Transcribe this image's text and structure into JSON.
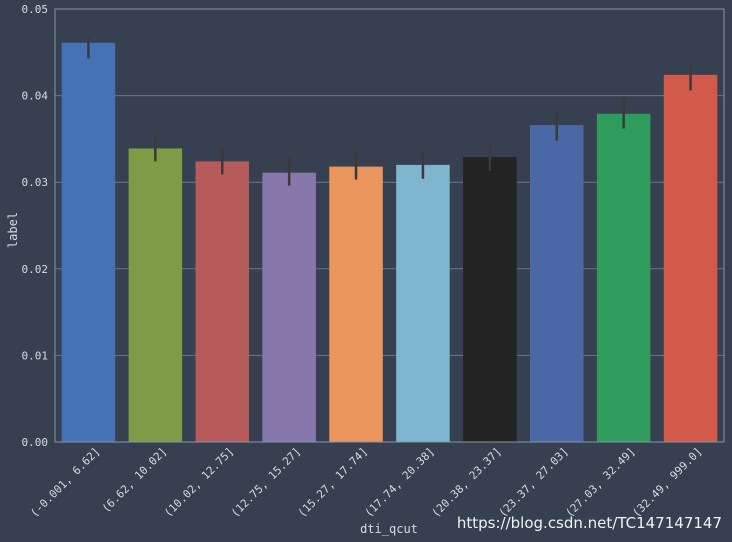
{
  "chart_data": {
    "type": "bar",
    "title": "",
    "xlabel": "dti_qcut",
    "ylabel": "label",
    "categories": [
      "(-0.001, 6.62]",
      "(6.62, 10.02]",
      "(10.02, 12.75]",
      "(12.75, 15.27]",
      "(15.27, 17.74]",
      "(17.74, 20.38]",
      "(20.38, 23.37]",
      "(23.37, 27.03]",
      "(27.03, 32.49]",
      "(32.49, 999.0]"
    ],
    "values": [
      0.0461,
      0.0339,
      0.0324,
      0.0311,
      0.0318,
      0.032,
      0.0329,
      0.0366,
      0.0379,
      0.0424
    ],
    "error_bars": [
      [
        0.0443,
        0.0468
      ],
      [
        0.0324,
        0.0355
      ],
      [
        0.0309,
        0.0341
      ],
      [
        0.0296,
        0.0329
      ],
      [
        0.0303,
        0.0335
      ],
      [
        0.0304,
        0.0335
      ],
      [
        0.0313,
        0.0345
      ],
      [
        0.0348,
        0.0381
      ],
      [
        0.0362,
        0.0398
      ],
      [
        0.0406,
        0.0436
      ]
    ],
    "colors": [
      "#4572b6",
      "#7f9b47",
      "#b65a5a",
      "#8678ab",
      "#ea955b",
      "#7fb6cf",
      "#232323",
      "#4a67a6",
      "#2f9b5c",
      "#d15a4b"
    ],
    "ylim": [
      0,
      0.05
    ],
    "yticks": [
      "0.00",
      "0.01",
      "0.02",
      "0.03",
      "0.04",
      "0.05"
    ],
    "grid": true
  },
  "watermark": "https://blog.csdn.net/TC147147147",
  "theme": {
    "background": "#374050",
    "grid": "#6c7590",
    "frame": "#8a93aa",
    "errorbar": "#3a3a3a"
  }
}
